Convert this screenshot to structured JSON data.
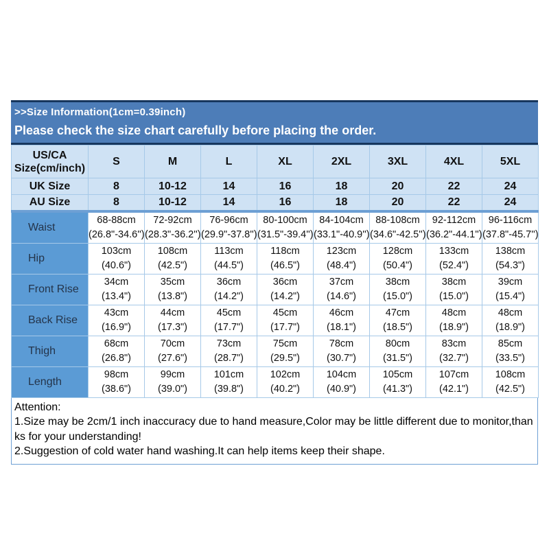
{
  "banner": {
    "line1": ">>Size Information(1cm=0.39inch)",
    "line2": "Please check the size chart carefully before placing the order."
  },
  "table": {
    "corner_line1": "US/CA",
    "corner_line2": "Size(cm/inch)",
    "size_headers": [
      "S",
      "M",
      "L",
      "XL",
      "2XL",
      "3XL",
      "4XL",
      "5XL"
    ],
    "size_rows": [
      {
        "label": "UK Size",
        "values": [
          "8",
          "10-12",
          "14",
          "16",
          "18",
          "20",
          "22",
          "24"
        ]
      },
      {
        "label": "AU Size",
        "values": [
          "8",
          "10-12",
          "14",
          "16",
          "18",
          "20",
          "22",
          "24"
        ]
      }
    ],
    "measurement_rows": [
      {
        "label": "Waist",
        "cm": [
          "68-88cm",
          "72-92cm",
          "76-96cm",
          "80-100cm",
          "84-104cm",
          "88-108cm",
          "92-112cm",
          "96-116cm"
        ],
        "inch": [
          "(26.8\"-34.6'')",
          "(28.3\"-36.2'')",
          "(29.9\"-37.8'')",
          "(31.5\"-39.4'')",
          "(33.1\"-40.9'')",
          "(34.6\"-42.5'')",
          "(36.2\"-44.1'')",
          "(37.8\"-45.7'')"
        ]
      },
      {
        "label": "Hip",
        "cm": [
          "103cm",
          "108cm",
          "113cm",
          "118cm",
          "123cm",
          "128cm",
          "133cm",
          "138cm"
        ],
        "inch": [
          "(40.6\")",
          "(42.5\")",
          "(44.5\")",
          "(46.5\")",
          "(48.4\")",
          "(50.4\")",
          "(52.4\")",
          "(54.3\")"
        ]
      },
      {
        "label": "Front Rise",
        "cm": [
          "34cm",
          "35cm",
          "36cm",
          "36cm",
          "37cm",
          "38cm",
          "38cm",
          "39cm"
        ],
        "inch": [
          "(13.4\")",
          "(13.8\")",
          "(14.2\")",
          "(14.2\")",
          "(14.6\")",
          "(15.0\")",
          "(15.0\")",
          "(15.4\")"
        ]
      },
      {
        "label": "Back Rise",
        "cm": [
          "43cm",
          "44cm",
          "45cm",
          "45cm",
          "46cm",
          "47cm",
          "48cm",
          "48cm"
        ],
        "inch": [
          "(16.9\")",
          "(17.3\")",
          "(17.7\")",
          "(17.7\")",
          "(18.1\")",
          "(18.5\")",
          "(18.9\")",
          "(18.9\")"
        ]
      },
      {
        "label": "Thigh",
        "cm": [
          "68cm",
          "70cm",
          "73cm",
          "75cm",
          "78cm",
          "80cm",
          "83cm",
          "85cm"
        ],
        "inch": [
          "(26.8\")",
          "(27.6\")",
          "(28.7\")",
          "(29.5\")",
          "(30.7\")",
          "(31.5\")",
          "(32.7\")",
          "(33.5\")"
        ]
      },
      {
        "label": "Length",
        "cm": [
          "98cm",
          "99cm",
          "101cm",
          "102cm",
          "104cm",
          "105cm",
          "107cm",
          "108cm"
        ],
        "inch": [
          "(38.6\")",
          "(39.0\")",
          "(39.8\")",
          "(40.2\")",
          "(40.9\")",
          "(41.3\")",
          "(42.1\")",
          "(42.5\")"
        ]
      }
    ]
  },
  "attention": {
    "title": "Attention:",
    "lines": [
      "1.Size may be 2cm/1 inch inaccuracy due to hand measure,Color may be little different due to monitor,than",
      "ks for your understanding!",
      "2.Suggestion of cold water hand washing.It can help items keep their shape."
    ]
  },
  "colors": {
    "banner_blue": "#4d7db8",
    "navy_border": "#17365d",
    "light_blue_cell": "#cfe2f4",
    "label_column_blue": "#5b9bd5",
    "cell_border": "#a6c9e8",
    "section_separator": "#6d9fd4"
  }
}
